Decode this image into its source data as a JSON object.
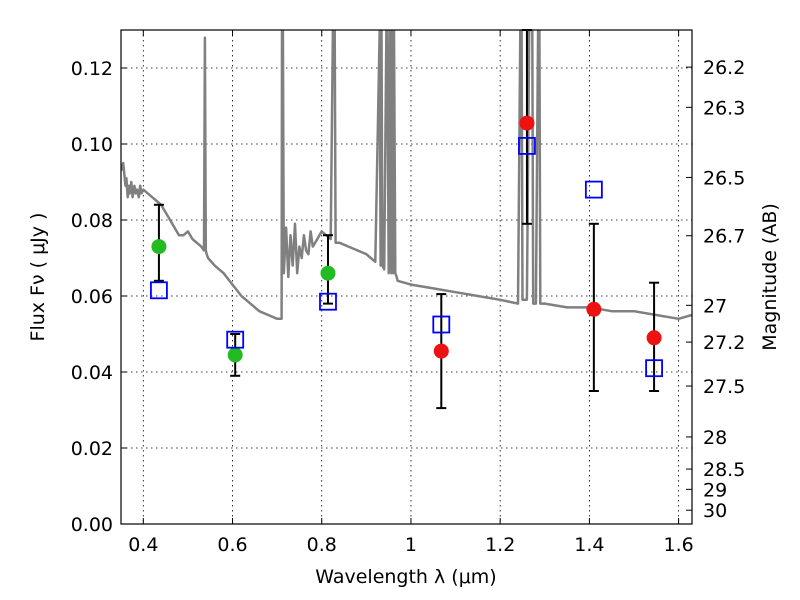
{
  "chart_data": {
    "type": "scatter",
    "xlabel": "Wavelength  λ (μm)",
    "ylabel": "Flux  Fν  ( μJy )",
    "y2label": "Magnitude (AB)",
    "xlim": [
      0.35,
      1.63
    ],
    "ylim": [
      0.0,
      0.13
    ],
    "xticks": [
      0.4,
      0.6,
      0.8,
      1.0,
      1.2,
      1.4,
      1.6
    ],
    "xtick_labels": [
      "0.4",
      "0.6",
      "0.8",
      "1",
      "1.2",
      "1.4",
      "1.6"
    ],
    "yticks": [
      0.0,
      0.02,
      0.04,
      0.06,
      0.08,
      0.1,
      0.12
    ],
    "ytick_labels": [
      "0.00",
      "0.02",
      "0.04",
      "0.06",
      "0.08",
      "0.10",
      "0.12"
    ],
    "mag_ticks": [
      "26.2",
      "26.3",
      "26.5",
      "26.7",
      "27",
      "27.2",
      "27.5",
      "28",
      "28.5",
      "29",
      "30"
    ],
    "grid": true,
    "colors": {
      "model": "#808080",
      "green": "#22bb22",
      "red": "#ee1111",
      "square": "#0000ff",
      "errorbar": "#000000"
    },
    "series": [
      {
        "marker": "circle-green",
        "x": [
          0.435,
          0.606,
          0.814
        ],
        "y": [
          0.073,
          0.0445,
          0.066
        ],
        "yerr_low": [
          0.064,
          0.039,
          0.058
        ],
        "yerr_high": [
          0.084,
          0.05,
          0.076
        ]
      },
      {
        "marker": "circle-red",
        "x": [
          1.068,
          1.26,
          1.41,
          1.545
        ],
        "y": [
          0.0455,
          0.1055,
          0.0565,
          0.049
        ],
        "yerr_low": [
          0.0305,
          0.079,
          0.035,
          0.035
        ],
        "yerr_high": [
          0.0605,
          0.13,
          0.079,
          0.0635
        ]
      },
      {
        "marker": "open-square-blue",
        "x": [
          0.435,
          0.606,
          0.814,
          1.068,
          1.26,
          1.41,
          1.545
        ],
        "y": [
          0.0615,
          0.0485,
          0.0585,
          0.0525,
          0.0995,
          0.088,
          0.041
        ]
      },
      {
        "marker": "line-gray-model",
        "x": [
          0.35,
          0.355,
          0.36,
          0.362,
          0.365,
          0.368,
          0.37,
          0.373,
          0.376,
          0.38,
          0.383,
          0.386,
          0.39,
          0.393,
          0.396,
          0.4,
          0.41,
          0.42,
          0.43,
          0.44,
          0.45,
          0.46,
          0.47,
          0.48,
          0.49,
          0.5,
          0.51,
          0.52,
          0.53,
          0.536,
          0.538,
          0.54,
          0.542,
          0.545,
          0.56,
          0.58,
          0.6,
          0.62,
          0.64,
          0.66,
          0.68,
          0.7,
          0.71,
          0.711,
          0.713,
          0.715,
          0.72,
          0.725,
          0.73,
          0.735,
          0.74,
          0.745,
          0.75,
          0.755,
          0.76,
          0.765,
          0.77,
          0.775,
          0.78,
          0.785,
          0.79,
          0.8,
          0.81,
          0.82,
          0.825,
          0.827,
          0.829,
          0.831,
          0.84,
          0.86,
          0.88,
          0.9,
          0.91,
          0.92,
          0.93,
          0.932,
          0.934,
          0.936,
          0.94,
          0.945,
          0.947,
          0.95,
          0.953,
          0.956,
          0.958,
          0.96,
          0.962,
          0.965,
          0.968,
          0.97,
          1.0,
          1.05,
          1.1,
          1.15,
          1.2,
          1.24,
          1.245,
          1.248,
          1.25,
          1.255,
          1.26,
          1.265,
          1.268,
          1.272,
          1.274,
          1.28,
          1.285,
          1.288,
          1.29,
          1.3,
          1.35,
          1.4,
          1.45,
          1.5,
          1.55,
          1.6,
          1.63
        ],
        "y": [
          0.093,
          0.095,
          0.089,
          0.091,
          0.086,
          0.089,
          0.087,
          0.09,
          0.086,
          0.089,
          0.087,
          0.088,
          0.086,
          0.089,
          0.087,
          0.088,
          0.087,
          0.086,
          0.085,
          0.084,
          0.082,
          0.08,
          0.078,
          0.076,
          0.076,
          0.077,
          0.075,
          0.074,
          0.073,
          0.072,
          0.128,
          0.072,
          0.071,
          0.07,
          0.068,
          0.066,
          0.063,
          0.06,
          0.058,
          0.056,
          0.055,
          0.054,
          0.054,
          0.13,
          0.13,
          0.066,
          0.078,
          0.065,
          0.076,
          0.068,
          0.079,
          0.066,
          0.073,
          0.07,
          0.076,
          0.072,
          0.071,
          0.077,
          0.073,
          0.074,
          0.075,
          0.077,
          0.076,
          0.075,
          0.13,
          0.13,
          0.13,
          0.074,
          0.074,
          0.073,
          0.072,
          0.071,
          0.07,
          0.069,
          0.13,
          0.068,
          0.13,
          0.068,
          0.067,
          0.13,
          0.13,
          0.066,
          0.13,
          0.066,
          0.13,
          0.066,
          0.13,
          0.066,
          0.065,
          0.064,
          0.063,
          0.062,
          0.061,
          0.06,
          0.059,
          0.058,
          0.13,
          0.13,
          0.059,
          0.059,
          0.059,
          0.13,
          0.13,
          0.13,
          0.058,
          0.058,
          0.13,
          0.13,
          0.058,
          0.058,
          0.057,
          0.057,
          0.056,
          0.056,
          0.055,
          0.054,
          0.055
        ]
      }
    ]
  }
}
